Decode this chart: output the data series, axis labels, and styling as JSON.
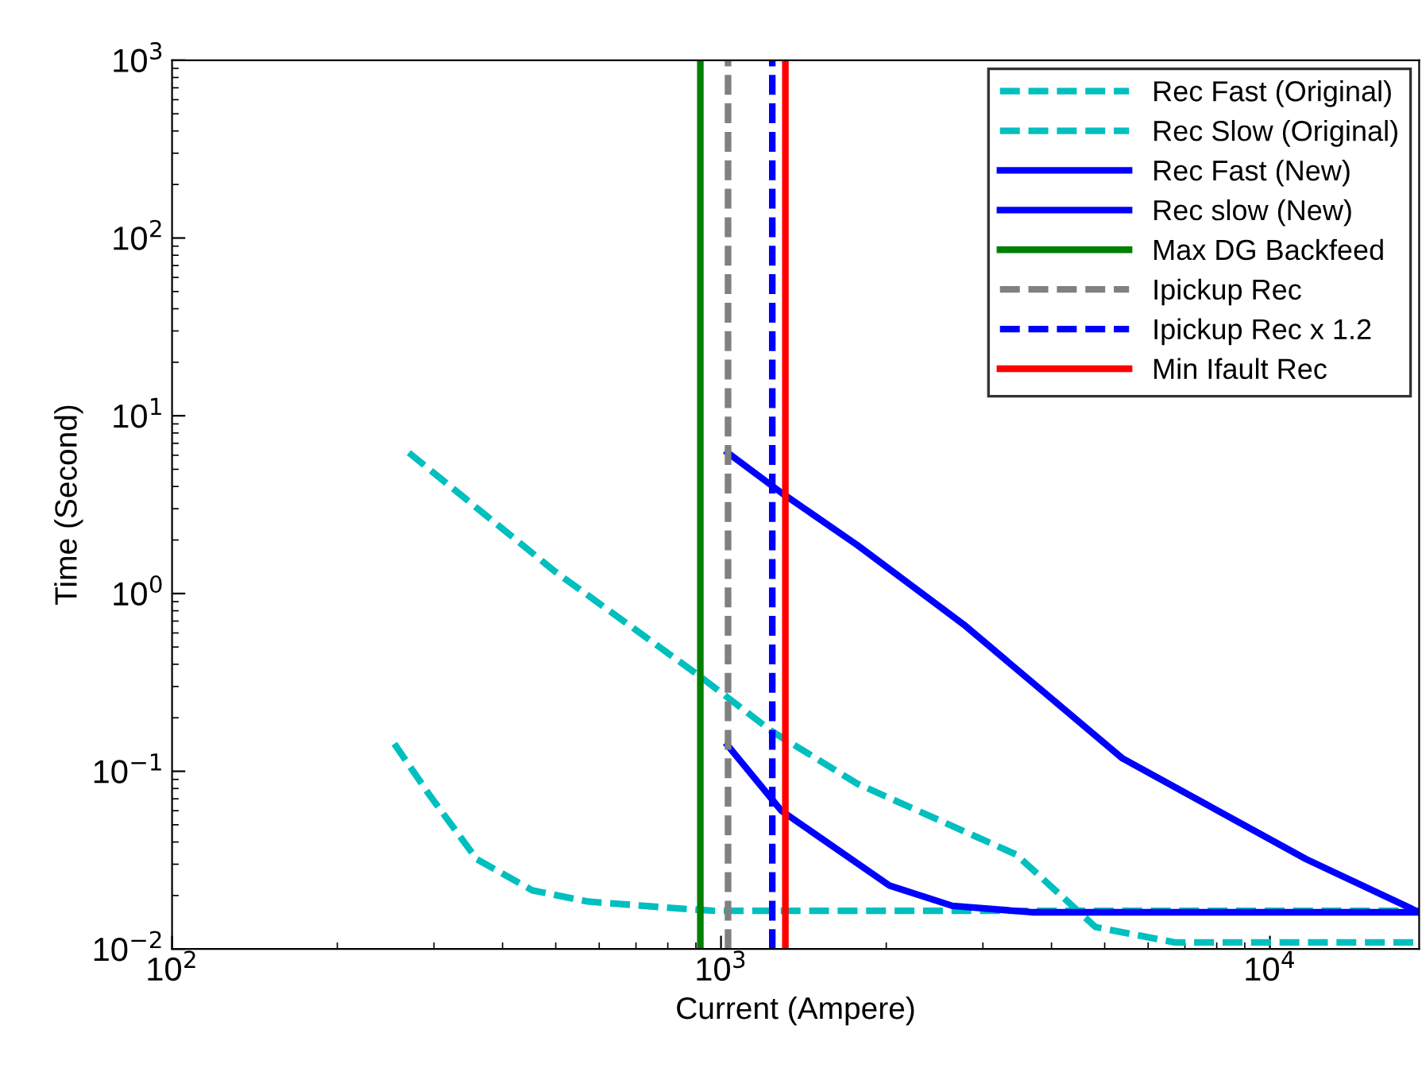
{
  "chart_data": {
    "type": "line",
    "xlabel": "Current (Ampere)",
    "ylabel": "Time (Second)",
    "log": "xy",
    "grid": false,
    "legend": "top right",
    "xlim": [
      100,
      18700
    ],
    "xticks": [
      {
        "value": 100,
        "label": "10$^{2}$"
      },
      {
        "value": 1000,
        "label": "10$^{3}$"
      },
      {
        "value": 10000,
        "label": "10$^{4}$"
      }
    ],
    "ylim": [
      0.01,
      1000
    ],
    "yticks": [
      {
        "value": 0.01,
        "label": "10$^{−2}$"
      },
      {
        "value": 0.1,
        "label": "10$^{−1}$"
      },
      {
        "value": 1,
        "label": "10$^{0}$"
      },
      {
        "value": 10,
        "label": "10$^{1}$"
      },
      {
        "value": 100,
        "label": "10$^{2}$"
      },
      {
        "value": 1000,
        "label": "10$^{3}$"
      }
    ],
    "series": [
      {
        "name": "Rec Fast (Original)",
        "color": "#00bfbf",
        "line_style": "dashed",
        "x": [
          254,
          294,
          359,
          453,
          572,
          798,
          973,
          18700
        ],
        "values": [
          0.143,
          0.074,
          0.032,
          0.0214,
          0.0185,
          0.0171,
          0.0164,
          0.0164
        ]
      },
      {
        "name": "Rec Slow (Original)",
        "color": "#00bfbf",
        "line_style": "dashed",
        "x": [
          270,
          500,
          912,
          1237,
          1773,
          3450,
          4810,
          6710,
          18700
        ],
        "values": [
          6.2,
          1.32,
          0.345,
          0.168,
          0.085,
          0.034,
          0.0133,
          0.0109,
          0.0109
        ]
      },
      {
        "name": "Rec Fast (New)",
        "color": "#0000ff",
        "line_style": "solid",
        "x": [
          1028,
          1288,
          2025,
          2640,
          3680,
          18700
        ],
        "values": [
          0.14,
          0.06,
          0.0228,
          0.0175,
          0.0161,
          0.0161
        ]
      },
      {
        "name": "Rec slow (New)",
        "color": "#0000ff",
        "line_style": "solid",
        "x": [
          1028,
          1288,
          1773,
          2770,
          5390,
          11650,
          18700
        ],
        "values": [
          6.2,
          3.69,
          1.87,
          0.668,
          0.118,
          0.032,
          0.0161
        ]
      },
      {
        "name": "Max DG Backfeed",
        "color": "#007f00",
        "line_style": "solid",
        "x": [
          917,
          917
        ],
        "values": [
          0.01,
          1000
        ]
      },
      {
        "name": "Ipickup Rec",
        "color": "#808080",
        "line_style": "dashed",
        "x": [
          1030,
          1030
        ],
        "values": [
          0.01,
          1000
        ]
      },
      {
        "name": "Ipickup Rec x 1.2",
        "color": "#0000ff",
        "line_style": "dashed",
        "x": [
          1240,
          1240
        ],
        "values": [
          0.01,
          1000
        ]
      },
      {
        "name": "Min Ifault Rec",
        "color": "#ff0000",
        "line_style": "solid",
        "x": [
          1310,
          1310
        ],
        "values": [
          0.01,
          1000
        ]
      }
    ]
  }
}
